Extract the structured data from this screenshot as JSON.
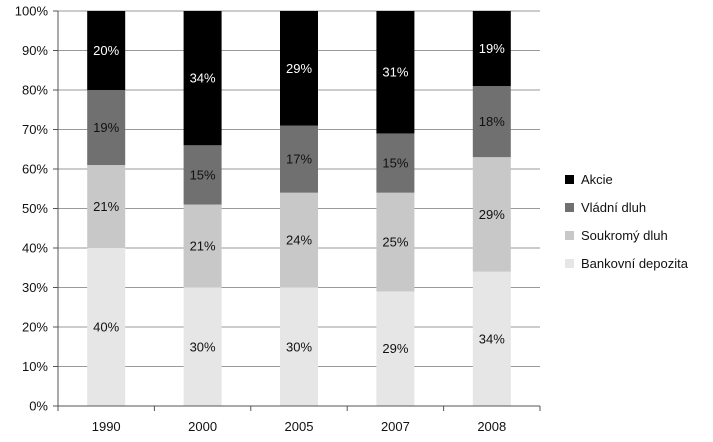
{
  "chart_data": {
    "type": "bar",
    "stacked": true,
    "categories": [
      "1990",
      "2000",
      "2005",
      "2007",
      "2008"
    ],
    "series": [
      {
        "name": "Bankovní depozita",
        "color": "#e6e6e6",
        "values": [
          40,
          30,
          30,
          29,
          34
        ],
        "labels": [
          "40%",
          "30%",
          "30%",
          "29%",
          "34%"
        ]
      },
      {
        "name": "Soukromý dluh",
        "color": "#c8c8c8",
        "values": [
          21,
          21,
          24,
          25,
          29
        ],
        "labels": [
          "21%",
          "21%",
          "24%",
          "25%",
          "29%"
        ]
      },
      {
        "name": "Vládní dluh",
        "color": "#707070",
        "values": [
          19,
          15,
          17,
          15,
          18
        ],
        "labels": [
          "19%",
          "15%",
          "17%",
          "15%",
          "18%"
        ]
      },
      {
        "name": "Akcie",
        "color": "#000000",
        "values": [
          20,
          34,
          29,
          31,
          19
        ],
        "labels": [
          "20%",
          "34%",
          "29%",
          "31%",
          "19%"
        ]
      }
    ],
    "ylim": [
      0,
      100
    ],
    "y_ticks": [
      "0%",
      "10%",
      "20%",
      "30%",
      "40%",
      "50%",
      "60%",
      "70%",
      "80%",
      "90%",
      "100%"
    ],
    "legend_order": [
      "Akcie",
      "Vládní dluh",
      "Soukromý dluh",
      "Bankovní depozita"
    ],
    "legend_position": "right",
    "grid": true
  }
}
